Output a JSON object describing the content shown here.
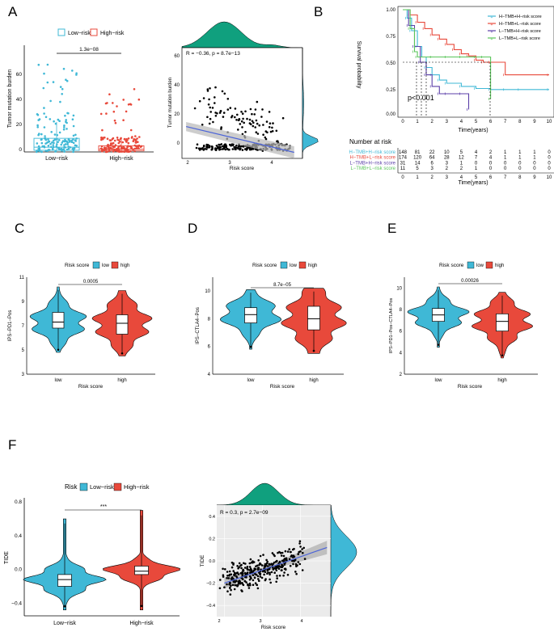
{
  "colors": {
    "low": "#3fb8d6",
    "high": "#e8493b",
    "teal": "#10a07e",
    "green": "#59c559",
    "purple": "#5b3fa8",
    "blue_line": "#4c64d8",
    "pval_line": "#000000"
  },
  "panels": {
    "A": {
      "letter": "A",
      "legend_low": "Low−risk",
      "legend_high": "High−risk",
      "pvalue": "1.3e−08",
      "ylabel": "Tumor mutation burden",
      "yticks": [
        "0",
        "20",
        "40",
        "60"
      ],
      "xcat_low": "Low−risk",
      "xcat_high": "High−risk",
      "corr_text": "R = −0.36, p = 8.7e−13",
      "scatter_ylabel": "Tumor mutation burden",
      "scatter_xlabel": "Risk score",
      "scatter_xticks": [
        "2",
        "3",
        "4"
      ],
      "scatter_yticks": [
        "0",
        "20",
        "40",
        "60"
      ]
    },
    "B": {
      "letter": "B",
      "ylabel": "Survival probability",
      "yticks": [
        "0.00",
        "0.25",
        "0.50",
        "0.75",
        "1.00"
      ],
      "xlabel": "Time(years)",
      "xticks": [
        "0",
        "1",
        "2",
        "3",
        "4",
        "5",
        "6",
        "7",
        "8",
        "9",
        "10"
      ],
      "pvalue": "p<0.001",
      "legend": [
        {
          "label": "H−TMB+H−risk score",
          "color": "#3fb8d6"
        },
        {
          "label": "H−TMB+L−risk score",
          "color": "#e8493b"
        },
        {
          "label": "L−TMB+H−risk score",
          "color": "#5b3fa8"
        },
        {
          "label": "L−TMB+L−risk score",
          "color": "#59c559"
        }
      ],
      "risk_title": "Number at risk",
      "risk_rows": [
        {
          "label": "H−TMB+H−risk score",
          "color": "#3fb8d6",
          "values": [
            "148",
            "81",
            "22",
            "10",
            "5",
            "4",
            "2",
            "1",
            "1",
            "1",
            "0"
          ]
        },
        {
          "label": "H−TMB+L−risk score",
          "color": "#e8493b",
          "values": [
            "174",
            "120",
            "64",
            "28",
            "12",
            "7",
            "4",
            "1",
            "1",
            "1",
            "0"
          ]
        },
        {
          "label": "L−TMB+H−risk score",
          "color": "#5b3fa8",
          "values": [
            "31",
            "14",
            "6",
            "3",
            "1",
            "0",
            "0",
            "0",
            "0",
            "0",
            "0"
          ]
        },
        {
          "label": "L−TMB+L−risk score",
          "color": "#59c559",
          "values": [
            "11",
            "5",
            "3",
            "2",
            "2",
            "1",
            "0",
            "0",
            "0",
            "0",
            "0"
          ]
        }
      ],
      "risk_xlabel": "Time(years)"
    },
    "C": {
      "letter": "C",
      "legend_title": "Risk score",
      "legend_low": "low",
      "legend_high": "high",
      "pvalue": "0.0005",
      "ylabel": "IPS−PD1−Pos",
      "yticks": [
        "3",
        "5",
        "7",
        "9",
        "11"
      ],
      "xcat_low": "low",
      "xcat_high": "high",
      "xlabel": "Risk score"
    },
    "D": {
      "letter": "D",
      "legend_title": "Risk score",
      "legend_low": "low",
      "legend_high": "high",
      "pvalue": "8.7e−05",
      "ylabel": "IPS−CTLA4−Pos",
      "yticks": [
        "4",
        "6",
        "8",
        "10"
      ],
      "xcat_low": "low",
      "xcat_high": "high",
      "xlabel": "Risk score"
    },
    "E": {
      "letter": "E",
      "legend_title": "Risk score",
      "legend_low": "low",
      "legend_high": "high",
      "pvalue": "0.00026",
      "ylabel": "IPS−PD1−Pos−CTLA4−Pos",
      "yticks": [
        "2",
        "4",
        "6",
        "8",
        "10"
      ],
      "xcat_low": "low",
      "xcat_high": "high",
      "xlabel": "Risk score"
    },
    "F": {
      "letter": "F",
      "legend_title": "Risk",
      "legend_low": "Low−risk",
      "legend_high": "High−risk",
      "signif": "***",
      "ylabel": "TIDE",
      "yticks": [
        "−0.4",
        "0.0",
        "0.4",
        "0.8"
      ],
      "xcat_low": "Low−risk",
      "xcat_high": "High−risk",
      "corr_text": "R = 0.3, p = 2.7e−09",
      "scatter_ylabel": "TIDE",
      "scatter_xlabel": "Risk score",
      "scatter_xticks": [
        "2",
        "3",
        "4"
      ],
      "scatter_yticks": [
        "−0.4",
        "−0.2",
        "0.0",
        "0.2",
        "0.4"
      ]
    }
  },
  "chart_data": [
    {
      "id": "A_box",
      "type": "box",
      "title": "",
      "ylabel": "Tumor mutation burden",
      "ylim": [
        0,
        70
      ],
      "categories": [
        "Low−risk",
        "High−risk"
      ],
      "series": [
        {
          "name": "Low−risk",
          "q1": 1.2,
          "median": 3.5,
          "q3": 10,
          "whisker_low": 0,
          "whisker_high": 22,
          "max": 67
        },
        {
          "name": "High−risk",
          "q1": 0.8,
          "median": 2,
          "q3": 4.5,
          "whisker_low": 0,
          "whisker_high": 9,
          "max": 52
        }
      ],
      "pvalue": "1.3e−08"
    },
    {
      "id": "A_scatter",
      "type": "scatter",
      "xlabel": "Risk score",
      "ylabel": "Tumor mutation burden",
      "xlim": [
        1.8,
        4.7
      ],
      "ylim": [
        -5,
        68
      ],
      "regression": {
        "x": [
          1.9,
          4.5
        ],
        "y": [
          16,
          -1
        ]
      },
      "correlation": "R = −0.36, p = 8.7e−13"
    },
    {
      "id": "B_km",
      "type": "line",
      "title": "",
      "xlabel": "Time(years)",
      "ylabel": "Survival probability",
      "xlim": [
        0,
        10
      ],
      "ylim": [
        0,
        1
      ],
      "series": [
        {
          "name": "H−TMB+H−risk score",
          "x": [
            0,
            0.3,
            0.6,
            1,
            1.3,
            1.6,
            2,
            2.5,
            3,
            4,
            5,
            6,
            7,
            8,
            10
          ],
          "y": [
            1,
            0.92,
            0.8,
            0.65,
            0.55,
            0.45,
            0.38,
            0.33,
            0.3,
            0.27,
            0.25,
            0.24,
            0.24,
            0.24,
            0.24
          ]
        },
        {
          "name": "H−TMB+L−risk score",
          "x": [
            0,
            0.5,
            1,
            1.5,
            2,
            2.5,
            3,
            3.5,
            4,
            4.5,
            5,
            5.5,
            6,
            7,
            10
          ],
          "y": [
            1,
            0.95,
            0.88,
            0.82,
            0.76,
            0.72,
            0.67,
            0.62,
            0.58,
            0.56,
            0.52,
            0.5,
            0.5,
            0.38,
            0.38
          ]
        },
        {
          "name": "L−TMB+H−risk score",
          "x": [
            0,
            0.4,
            0.8,
            1.2,
            1.6,
            2,
            2.5,
            3,
            4,
            4.5
          ],
          "y": [
            1,
            0.85,
            0.65,
            0.5,
            0.38,
            0.27,
            0.2,
            0.2,
            0.2,
            0.05
          ]
        },
        {
          "name": "L−TMB+L−risk score",
          "x": [
            0,
            0.5,
            0.8,
            1,
            2,
            3,
            4,
            5,
            5.5,
            6
          ],
          "y": [
            1,
            0.82,
            0.6,
            0.55,
            0.55,
            0.55,
            0.55,
            0.55,
            0.55,
            0.15
          ]
        }
      ],
      "pvalue": "p<0.001"
    },
    {
      "id": "C_violin",
      "type": "violin",
      "ylabel": "IPS−PD1−Pos",
      "ylim": [
        3,
        11
      ],
      "categories": [
        "low",
        "high"
      ],
      "series": [
        {
          "name": "low",
          "q1": 6.8,
          "median": 7.3,
          "q3": 8.1,
          "min": 4.8,
          "max": 10.2
        },
        {
          "name": "high",
          "q1": 6.3,
          "median": 7.2,
          "q3": 7.9,
          "min": 4.5,
          "max": 9.9
        }
      ],
      "pvalue": "0.0005"
    },
    {
      "id": "D_violin",
      "type": "violin",
      "ylabel": "IPS−CTLA4−Pos",
      "ylim": [
        4,
        11
      ],
      "categories": [
        "low",
        "high"
      ],
      "series": [
        {
          "name": "low",
          "q1": 7.7,
          "median": 8.3,
          "q3": 8.8,
          "min": 5.8,
          "max": 10.1
        },
        {
          "name": "high",
          "q1": 7.2,
          "median": 8.0,
          "q3": 8.9,
          "min": 5.5,
          "max": 10.2
        }
      ],
      "pvalue": "8.7e−05"
    },
    {
      "id": "E_violin",
      "type": "violin",
      "ylabel": "IPS−PD1−Pos−CTLA4−Pos",
      "ylim": [
        2,
        11
      ],
      "categories": [
        "low",
        "high"
      ],
      "series": [
        {
          "name": "low",
          "q1": 6.9,
          "median": 7.5,
          "q3": 8.1,
          "min": 4.5,
          "max": 10.1
        },
        {
          "name": "high",
          "q1": 6.0,
          "median": 6.9,
          "q3": 7.6,
          "min": 3.5,
          "max": 9.6
        }
      ],
      "pvalue": "0.00026"
    },
    {
      "id": "F_violin",
      "type": "violin",
      "ylabel": "TIDE",
      "ylim": [
        -0.55,
        0.85
      ],
      "categories": [
        "Low−risk",
        "High−risk"
      ],
      "series": [
        {
          "name": "Low−risk",
          "q1": -0.2,
          "median": -0.12,
          "q3": -0.06,
          "min": -0.48,
          "max": 0.6
        },
        {
          "name": "High−risk",
          "q1": -0.06,
          "median": -0.02,
          "q3": 0.04,
          "min": -0.48,
          "max": 0.7
        }
      ],
      "signif": "***"
    },
    {
      "id": "F_scatter",
      "type": "scatter",
      "xlabel": "Risk score",
      "ylabel": "TIDE",
      "xlim": [
        1.8,
        4.8
      ],
      "ylim": [
        -0.5,
        0.5
      ],
      "regression": {
        "x": [
          2,
          4.7
        ],
        "y": [
          -0.2,
          0.12
        ]
      },
      "correlation": "R = 0.3, p = 2.7e−09"
    }
  ]
}
